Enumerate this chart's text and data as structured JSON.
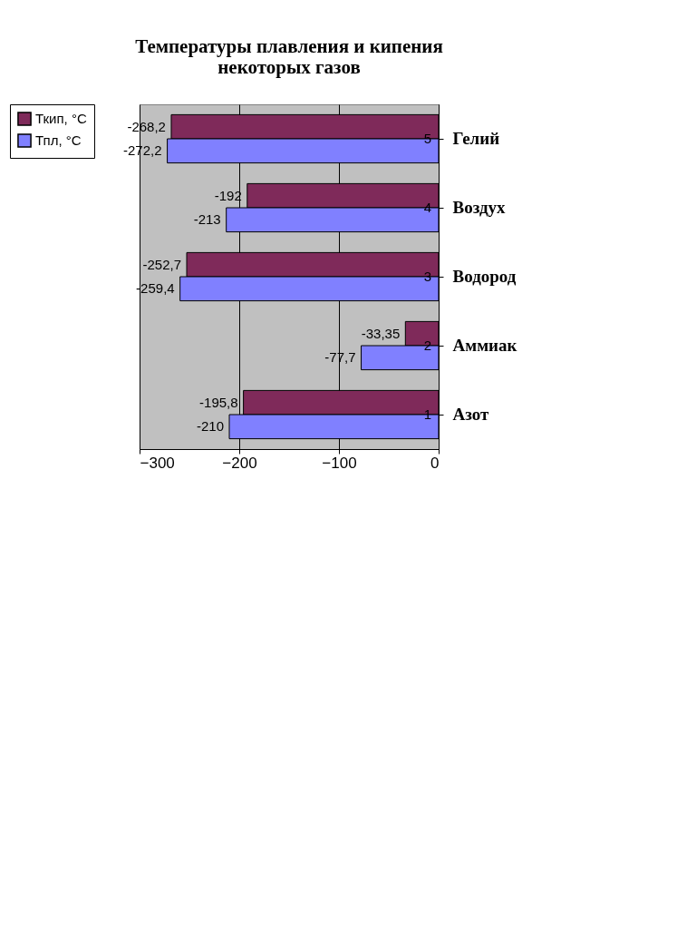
{
  "chart_data": {
    "type": "bar",
    "orientation": "horizontal",
    "title": "Температуры плавления и кипения\nнекоторых газов",
    "categories": [
      "Гелий",
      "Воздух",
      "Водород",
      "Аммиак",
      "Азот"
    ],
    "series": [
      {
        "name": "Ткип, °С",
        "color": "#7f2a5a",
        "values": [
          -268.2,
          -192,
          -252.7,
          -33.35,
          -195.8
        ],
        "value_labels": [
          "-268,2",
          "-192",
          "-252,7",
          "-33,35",
          "-195,8"
        ]
      },
      {
        "name": "Тпл, °С",
        "color": "#8080ff",
        "values": [
          -272.2,
          -213,
          -259.4,
          -77.7,
          -210
        ],
        "value_labels": [
          "-272,2",
          "-213",
          "-259,4",
          "-77,7",
          "-210"
        ]
      }
    ],
    "xlim": [
      -300,
      0
    ],
    "xticks": [
      -300,
      -200,
      -100,
      0
    ],
    "grid": "x",
    "legend": "left",
    "annotations": [
      {
        "text": "5",
        "y": "Гелий"
      },
      {
        "text": "4",
        "y": "Воздух"
      },
      {
        "text": "3",
        "y": "Водород"
      },
      {
        "text": "2",
        "y": "Аммиак"
      },
      {
        "text": "1",
        "y": "Азот"
      }
    ]
  }
}
